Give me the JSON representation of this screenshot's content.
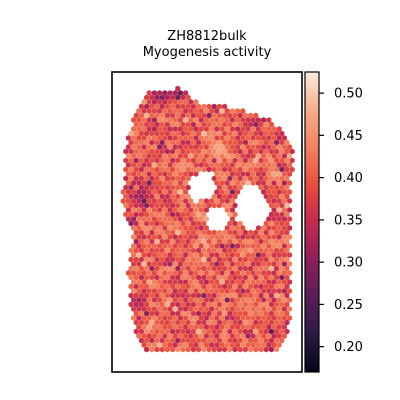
{
  "chart_data": {
    "type": "heatmap",
    "subtype": "spatial-hexbin",
    "title_line1": "ZH8812bulk",
    "title_line2": "Myogenesis activity",
    "xlabel": "",
    "ylabel": "",
    "axis_ticks_visible": false,
    "grid": false,
    "colormap": "rocket",
    "colorbar": {
      "location": "right",
      "range": [
        0.17,
        0.525
      ],
      "ticks": [
        0.2,
        0.25,
        0.3,
        0.35,
        0.4,
        0.45,
        0.5
      ],
      "tick_labels": [
        "0.20",
        "0.25",
        "0.30",
        "0.35",
        "0.40",
        "0.45",
        "0.50"
      ]
    },
    "value_distribution": {
      "typical_range": [
        0.33,
        0.46
      ],
      "low_region_values": [
        0.22,
        0.3
      ],
      "high_region_values": [
        0.46,
        0.52
      ]
    },
    "colormap_stops": [
      "#03051a",
      "#2b1b43",
      "#5a1e58",
      "#8f1f5b",
      "#c42a50",
      "#e84e3d",
      "#f3825f",
      "#f6ae8b",
      "#faebdd"
    ]
  }
}
